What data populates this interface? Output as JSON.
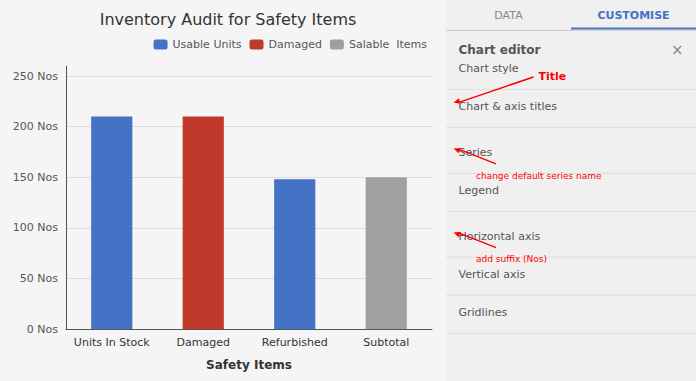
{
  "chart_data": {
    "type": "bar",
    "title": "Inventory Audit for Safety Items",
    "xlabel": "Safety Items",
    "categories": [
      "Units In Stock",
      "Damaged",
      "Refurbished",
      "Subtotal"
    ],
    "series": [
      {
        "name": "Usable Units",
        "color": "#4472C4",
        "values": [
          210,
          null,
          148,
          null
        ]
      },
      {
        "name": "Damaged",
        "color": "#C0392B",
        "values": [
          null,
          210,
          null,
          null
        ]
      },
      {
        "name": "Salable  Items",
        "color": "#A0A0A0",
        "values": [
          null,
          null,
          null,
          150
        ]
      }
    ],
    "ylim": [
      0,
      260
    ],
    "yticks": [
      {
        "value": 0,
        "label": "0 Nos"
      },
      {
        "value": 50,
        "label": "50 Nos"
      },
      {
        "value": 100,
        "label": "100 Nos"
      },
      {
        "value": 150,
        "label": "150 Nos"
      },
      {
        "value": 200,
        "label": "200 Nos"
      },
      {
        "value": 250,
        "label": "250 Nos"
      }
    ],
    "grid": true,
    "legend": "upper right",
    "annotations": {
      "tabs": [
        "DATA",
        "CUSTOMISE"
      ],
      "heading": "Chart editor",
      "close": "×",
      "menu": [
        "Chart style",
        "Chart & axis titles",
        "Series",
        "Legend",
        "Horizontal axis",
        "Vertical axis",
        "Gridlines"
      ],
      "notes": [
        {
          "text": "Title",
          "target": "Chart & axis titles",
          "color": "red"
        },
        {
          "text": "change default series name",
          "target": "Series",
          "color": "red"
        },
        {
          "text": "add suffix (Nos)",
          "target": "Horizontal axis",
          "color": "red"
        }
      ]
    }
  }
}
